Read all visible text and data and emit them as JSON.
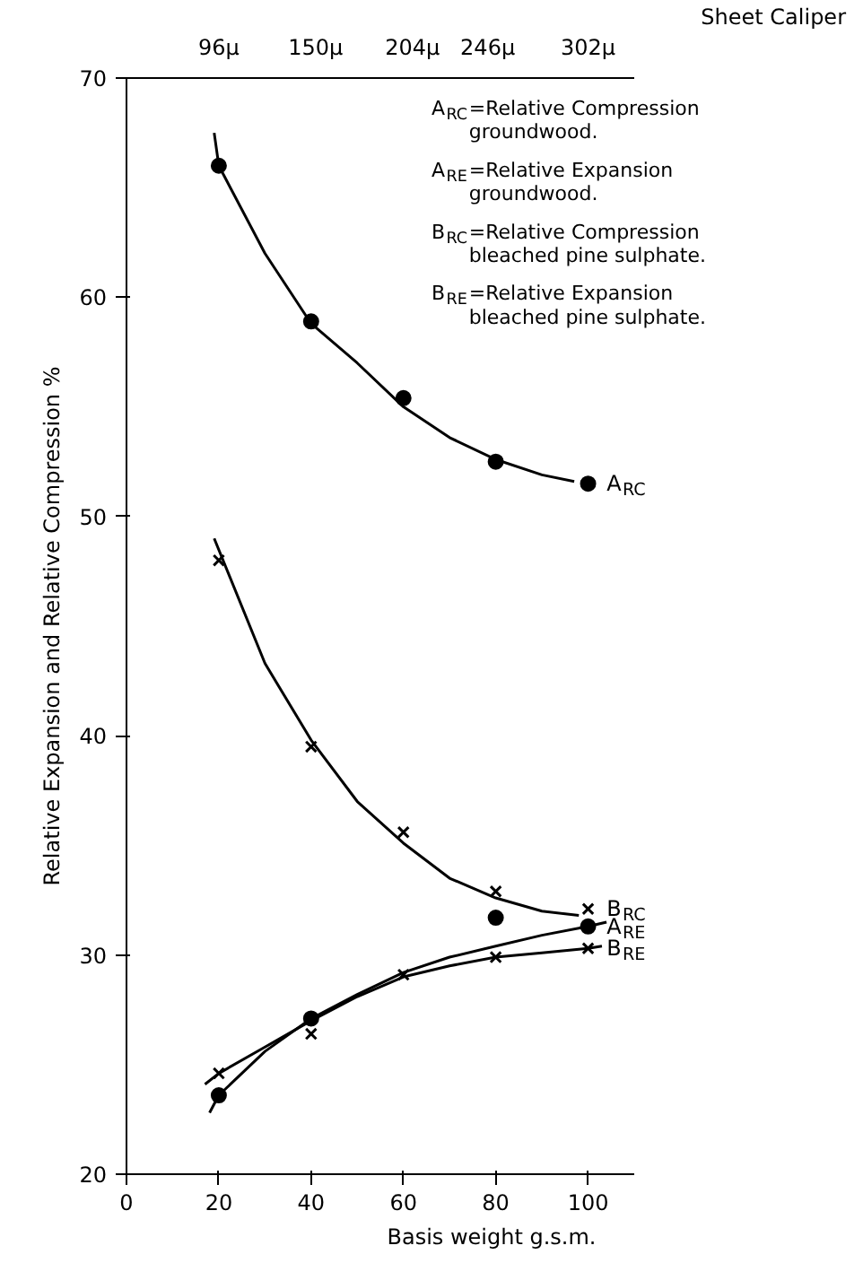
{
  "chart_data": {
    "type": "scatter",
    "xlabel": "Basis weight g.s.m.",
    "ylabel": "Relative Expansion and Relative Compression %",
    "x2label": "Sheet Caliper",
    "xlim": [
      0,
      110
    ],
    "ylim": [
      20,
      70
    ],
    "xticks": [
      0,
      20,
      40,
      60,
      80,
      100
    ],
    "yticks": [
      20,
      30,
      40,
      50,
      60,
      70
    ],
    "x2lim": [
      44.5,
      327.75
    ],
    "x2ticks": [
      {
        "value": 96,
        "label": "96μ"
      },
      {
        "value": 150,
        "label": "150μ"
      },
      {
        "value": 204,
        "label": "204μ"
      },
      {
        "value": 246,
        "label": "246μ"
      },
      {
        "value": 302,
        "label": "302μ"
      }
    ],
    "grid": false,
    "legend": false,
    "annotations": [
      "A$_{RC}$=Relative Compression groundwood.",
      "A$_{RE}$=Relative Expansion groundwood.",
      "B$_{RC}$=Relative Compression bleached pine sulphate.",
      "B$_{RE}$=Relative Expansion bleached pine sulphate."
    ],
    "series": [
      {
        "name": "A$_{RC}$",
        "marker": "circle",
        "color": "#000000",
        "x": [
          20,
          40,
          60,
          80,
          100
        ],
        "values": [
          66.0,
          58.9,
          55.4,
          52.5,
          51.5
        ]
      },
      {
        "name": "B$_{RC}$",
        "marker": "cross",
        "color": "#000000",
        "x": [
          20,
          40,
          60,
          80,
          100
        ],
        "values": [
          48.0,
          39.5,
          35.6,
          32.9,
          32.1
        ]
      },
      {
        "name": "A$_{RE}$",
        "marker": "circle",
        "color": "#000000",
        "x": [
          20,
          40,
          80,
          100
        ],
        "values": [
          23.6,
          27.1,
          31.7,
          31.3
        ]
      },
      {
        "name": "B$_{RE}$",
        "marker": "cross",
        "color": "#000000",
        "x": [
          20,
          40,
          60,
          80,
          100
        ],
        "values": [
          24.6,
          26.4,
          29.1,
          29.9,
          30.3
        ]
      },
      {
        "type": "line",
        "line_style": "solid",
        "color": "#000000",
        "x": [
          19,
          20,
          30,
          40,
          50,
          60,
          70,
          80,
          90,
          97
        ],
        "values": [
          67.5,
          66.0,
          62.0,
          58.8,
          57.0,
          55.0,
          53.6,
          52.6,
          51.9,
          51.6
        ]
      },
      {
        "type": "line",
        "line_style": "solid",
        "color": "#000000",
        "x": [
          19,
          30,
          40,
          50,
          60,
          70,
          80,
          90,
          98
        ],
        "values": [
          49.0,
          43.3,
          39.8,
          37.0,
          35.1,
          33.5,
          32.6,
          32.0,
          31.8
        ]
      },
      {
        "type": "line",
        "line_style": "solid",
        "color": "#000000",
        "x": [
          18,
          20,
          30,
          40,
          50,
          60,
          70,
          80,
          90,
          100,
          104
        ],
        "values": [
          22.8,
          23.6,
          25.6,
          27.1,
          28.2,
          29.2,
          29.9,
          30.4,
          30.9,
          31.3,
          31.5
        ]
      },
      {
        "type": "line",
        "line_style": "solid",
        "color": "#000000",
        "x": [
          17,
          20,
          30,
          40,
          50,
          60,
          70,
          80,
          90,
          100,
          103
        ],
        "values": [
          24.1,
          24.6,
          25.8,
          27.0,
          28.1,
          29.0,
          29.5,
          29.9,
          30.1,
          30.3,
          30.4
        ]
      }
    ]
  }
}
